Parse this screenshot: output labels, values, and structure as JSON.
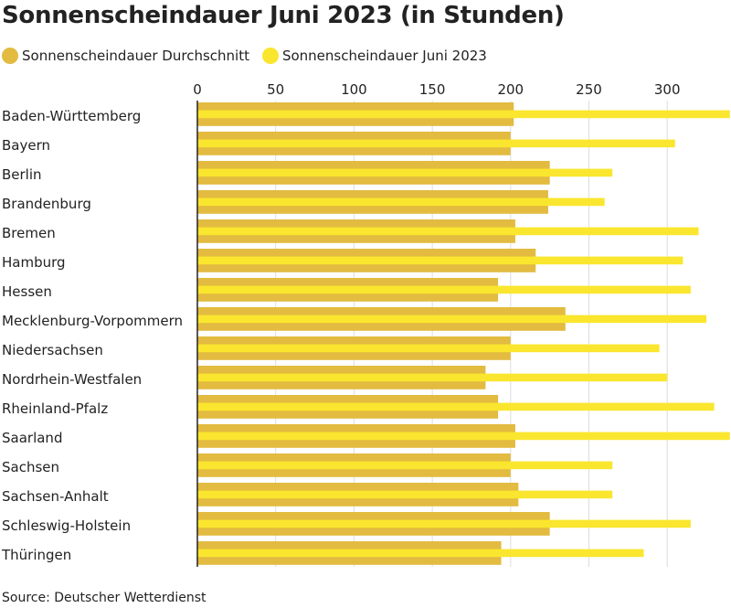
{
  "title": "Sonnenscheindauer Juni 2023 (in Stunden)",
  "source": "Source: Deutscher Wetterdienst",
  "colors": {
    "average": "#E2BB40",
    "june2023": "#FAE62E",
    "grid": "#dddddd",
    "axis": "#222222",
    "text": "#222222"
  },
  "chart_data": {
    "type": "bar",
    "orientation": "horizontal",
    "title": "Sonnenscheindauer Juni 2023 (in Stunden)",
    "xlim": [
      0,
      340
    ],
    "xticks": [
      0,
      50,
      100,
      150,
      200,
      250,
      300
    ],
    "grid": true,
    "legend_position": "top-left",
    "categories": [
      "Baden-Württemberg",
      "Bayern",
      "Berlin",
      "Brandenburg",
      "Bremen",
      "Hamburg",
      "Hessen",
      "Mecklenburg-Vorpommern",
      "Niedersachsen",
      "Nordrhein-Westfalen",
      "Rheinland-Pfalz",
      "Saarland",
      "Sachsen",
      "Sachsen-Anhalt",
      "Schleswig-Holstein",
      "Thüringen"
    ],
    "series": [
      {
        "name": "Sonnenscheindauer Durchschnitt",
        "values": [
          202,
          200,
          225,
          224,
          203,
          216,
          192,
          235,
          200,
          184,
          192,
          203,
          200,
          205,
          225,
          194
        ]
      },
      {
        "name": "Sonnenscheindauer Juni 2023",
        "values": [
          340,
          305,
          265,
          260,
          320,
          310,
          315,
          325,
          295,
          300,
          330,
          340,
          265,
          265,
          315,
          285
        ]
      }
    ]
  }
}
